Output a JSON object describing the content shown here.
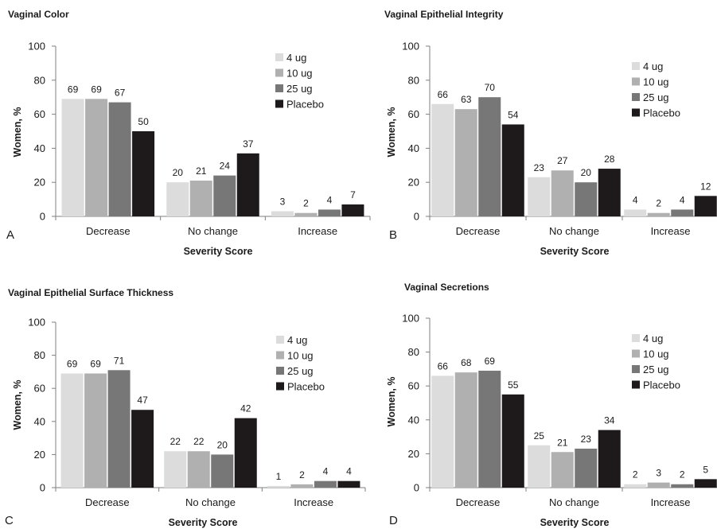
{
  "chart_data": [
    {
      "type": "bar",
      "panel": "A",
      "title": "Vaginal Color",
      "xlabel": "Severity Score",
      "ylabel": "Women, %",
      "ylim": [
        0,
        100
      ],
      "yticks": [
        0,
        20,
        40,
        60,
        80,
        100
      ],
      "categories": [
        "Decrease",
        "No change",
        "Increase"
      ],
      "series": [
        {
          "name": "4 ug",
          "values": [
            69,
            20,
            3
          ]
        },
        {
          "name": "10 ug",
          "values": [
            69,
            21,
            2
          ]
        },
        {
          "name": "25 ug",
          "values": [
            67,
            24,
            4
          ]
        },
        {
          "name": "Placebo",
          "values": [
            50,
            37,
            7
          ]
        }
      ],
      "legend": "top-right",
      "grid": false
    },
    {
      "type": "bar",
      "panel": "B",
      "title": "Vaginal Epithelial Integrity",
      "xlabel": "Severity Score",
      "ylabel": "Women, %",
      "ylim": [
        0,
        100
      ],
      "yticks": [
        0,
        20,
        40,
        60,
        80,
        100
      ],
      "categories": [
        "Decrease",
        "No change",
        "Increase"
      ],
      "series": [
        {
          "name": "4 ug",
          "values": [
            66,
            23,
            4
          ]
        },
        {
          "name": "10 ug",
          "values": [
            63,
            27,
            2
          ]
        },
        {
          "name": "25 ug",
          "values": [
            70,
            20,
            4
          ]
        },
        {
          "name": "Placebo",
          "values": [
            54,
            28,
            12
          ]
        }
      ],
      "legend": "top-right",
      "grid": false
    },
    {
      "type": "bar",
      "panel": "C",
      "title": "Vaginal Epithelial Surface Thickness",
      "xlabel": "Severity Score",
      "ylabel": "Women, %",
      "ylim": [
        0,
        100
      ],
      "yticks": [
        0,
        20,
        40,
        60,
        80,
        100
      ],
      "categories": [
        "Decrease",
        "No change",
        "Increase"
      ],
      "series": [
        {
          "name": "4 ug",
          "values": [
            69,
            22,
            1
          ]
        },
        {
          "name": "10 ug",
          "values": [
            69,
            22,
            2
          ]
        },
        {
          "name": "25 ug",
          "values": [
            71,
            20,
            4
          ]
        },
        {
          "name": "Placebo",
          "values": [
            47,
            42,
            4
          ]
        }
      ],
      "legend": "right",
      "grid": false
    },
    {
      "type": "bar",
      "panel": "D",
      "title": "Vaginal Secretions",
      "xlabel": "Severity Score",
      "ylabel": "Women, %",
      "ylim": [
        0,
        100
      ],
      "yticks": [
        0,
        20,
        40,
        60,
        80,
        100
      ],
      "categories": [
        "Decrease",
        "No change",
        "Increase"
      ],
      "series": [
        {
          "name": "4 ug",
          "values": [
            66,
            25,
            2
          ]
        },
        {
          "name": "10 ug",
          "values": [
            68,
            21,
            3
          ]
        },
        {
          "name": "25 ug",
          "values": [
            69,
            23,
            2
          ]
        },
        {
          "name": "Placebo",
          "values": [
            55,
            34,
            5
          ]
        }
      ],
      "legend": "top-right",
      "grid": false
    }
  ],
  "colors": {
    "series": [
      "#dcdcdc",
      "#b0b0b0",
      "#777777",
      "#1e1a1b"
    ],
    "axis": "#7f7f7f"
  }
}
